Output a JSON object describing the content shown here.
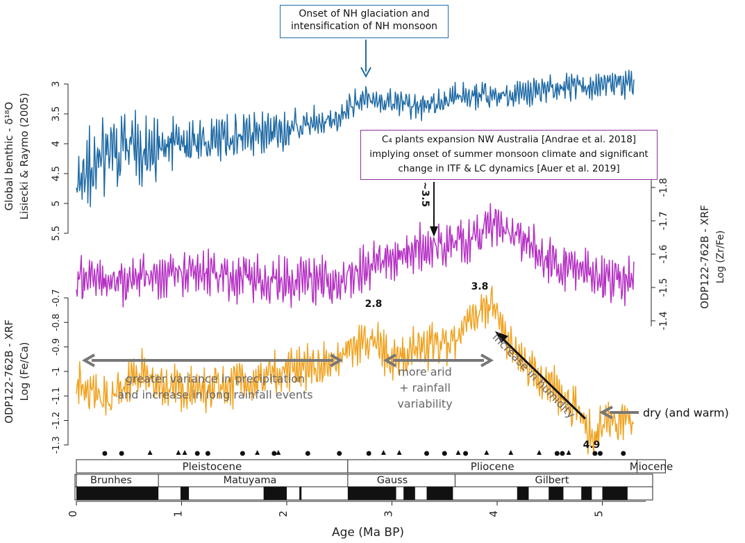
{
  "chart_data": {
    "type": "line",
    "xlabel": "Age (Ma BP)",
    "xlim": [
      0,
      5.3
    ],
    "x_ticks": [
      "0",
      "1",
      "2",
      "3",
      "4",
      "5"
    ],
    "panels": [
      {
        "name": "Global benthic - δ¹⁸O Lisiecki & Raymo (2005)",
        "ylabel_line1": "Global benthic - δ¹⁸O",
        "ylabel_line2": "Lisiecki & Raymo (2005)",
        "ylim": [
          3,
          5.5
        ],
        "inverted": true,
        "axis": "left",
        "ticks": [
          "3",
          "3.5",
          "4",
          "4.5",
          "5",
          "5.5"
        ],
        "color": "#1f6aa5",
        "x": [
          0.0,
          0.2,
          0.5,
          1.0,
          1.5,
          2.0,
          2.5,
          2.7,
          2.9,
          3.3,
          3.6,
          4.0,
          4.5,
          5.0,
          5.3
        ],
        "y": [
          4.6,
          4.3,
          4.1,
          4.0,
          3.9,
          3.75,
          3.55,
          3.2,
          3.3,
          3.4,
          3.2,
          3.2,
          3.1,
          3.0,
          3.0
        ]
      },
      {
        "name": "ODP122-762B - XRF Log (Zr/Fe)",
        "ylabel_line1": "ODP122-762B - XRF",
        "ylabel_line2": "Log (Zr/Fe)",
        "ylim": [
          -1.8,
          -1.4
        ],
        "inverted": true,
        "axis": "right",
        "ticks": [
          "-1.8",
          "-1.7",
          "-1.6",
          "-1.5",
          "-1.4"
        ],
        "color": "#b52fc4",
        "x": [
          0.0,
          0.5,
          1.0,
          1.5,
          2.0,
          2.5,
          2.7,
          3.0,
          3.3,
          3.5,
          3.8,
          3.9,
          4.2,
          4.5,
          5.0,
          5.3
        ],
        "y": [
          -1.53,
          -1.52,
          -1.55,
          -1.53,
          -1.52,
          -1.52,
          -1.56,
          -1.59,
          -1.62,
          -1.63,
          -1.65,
          -1.7,
          -1.66,
          -1.58,
          -1.53,
          -1.52
        ]
      },
      {
        "name": "ODP122-762B - XRF Log (Fe/Ca)",
        "ylabel_line1": "ODP122-762B - XRF",
        "ylabel_line2": "Log (Fe/Ca)",
        "ylim": [
          -1.3,
          -0.7
        ],
        "inverted": false,
        "axis": "left",
        "ticks": [
          "-0.7",
          "-0.8",
          "-0.9",
          "-1",
          "-1.1",
          "-1.2",
          "-1.3"
        ],
        "color": "#f0a21f",
        "x": [
          0.0,
          0.3,
          0.6,
          1.0,
          1.5,
          2.0,
          2.4,
          2.6,
          2.8,
          3.0,
          3.3,
          3.6,
          3.85,
          3.95,
          4.2,
          4.5,
          4.8,
          4.9,
          5.1,
          5.3
        ],
        "y": [
          -1.05,
          -1.12,
          -1.0,
          -1.08,
          -1.05,
          -1.0,
          -0.97,
          -0.92,
          -0.86,
          -0.95,
          -0.9,
          -0.87,
          -0.75,
          -0.72,
          -0.95,
          -1.05,
          -1.18,
          -1.27,
          -1.2,
          -1.2
        ]
      }
    ],
    "annotations": {
      "onset_box": [
        "Onset of NH glaciation and",
        "intensification of NH monsoon"
      ],
      "c4_box": [
        "C₄ plants expansion NW Australia [Andrae et al. 2018]",
        "implying onset of summer monsoon climate and significant",
        "change in ITF & LC dynamics [Auer et al. 2019]"
      ],
      "label_35": "~3.5",
      "label_28": "2.8",
      "label_38": "3.8",
      "label_49": "4.9",
      "variance_text": [
        "greater variance in precipitation",
        "and increase in long rainfall events"
      ],
      "arid_text": [
        "more arid",
        "+ rainfall",
        "variability"
      ],
      "humidity_text": "increase in humidity",
      "dry_text": "dry (and warm)"
    },
    "markers": {
      "circles": [
        0.27,
        0.43,
        1.15,
        1.25,
        1.58,
        1.88,
        2.2,
        2.5,
        2.78,
        3.33,
        3.5,
        3.7,
        4.57,
        4.62,
        4.93,
        4.98,
        5.2
      ],
      "triangles": [
        0.7,
        0.97,
        1.03,
        1.72,
        1.92,
        2.92,
        3.07,
        3.63,
        3.9,
        4.13,
        4.4,
        4.68
      ]
    },
    "epochs": [
      {
        "label": "Pleistocene",
        "from": 0,
        "to": 2.58
      },
      {
        "label": "Pliocene",
        "from": 2.58,
        "to": 5.33
      },
      {
        "label": "Miocene",
        "from": 5.33,
        "to": 5.6
      }
    ],
    "chrons": [
      {
        "label": "Brunhes",
        "from": 0,
        "to": 0.78
      },
      {
        "label": "Matuyama",
        "from": 0.78,
        "to": 2.58
      },
      {
        "label": "Gauss",
        "from": 2.58,
        "to": 3.6
      },
      {
        "label": "Gilbert",
        "from": 3.6,
        "to": 5.3
      }
    ],
    "normal_polarity": [
      [
        0,
        0.78
      ],
      [
        0.99,
        1.07
      ],
      [
        1.78,
        2.0
      ],
      [
        2.12,
        2.14
      ],
      [
        2.58,
        3.04
      ],
      [
        3.11,
        3.22
      ],
      [
        3.33,
        3.58
      ],
      [
        4.19,
        4.3
      ],
      [
        4.49,
        4.63
      ],
      [
        4.8,
        4.9
      ],
      [
        5.0,
        5.24
      ]
    ]
  }
}
